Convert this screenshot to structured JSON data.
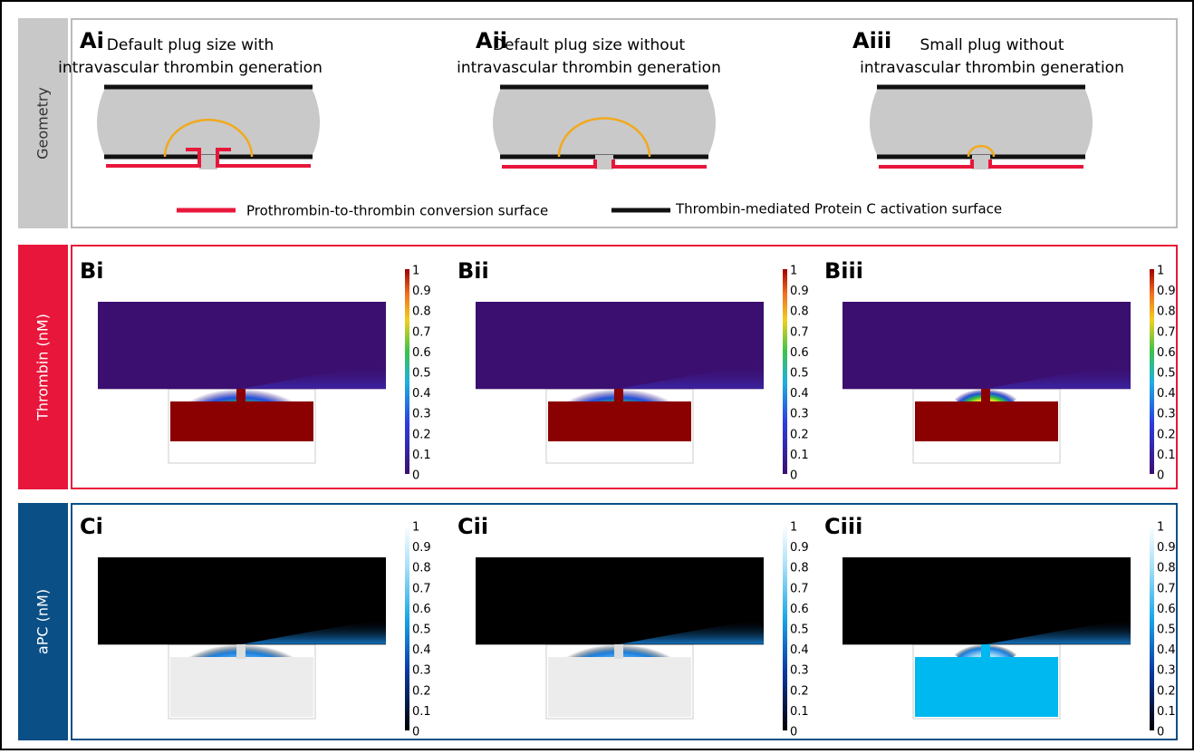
{
  "geometry": {
    "row_label": "Geometry",
    "panels": [
      {
        "id": "Ai",
        "title": [
          "Default plug size with",
          "intravascular thrombin generation"
        ]
      },
      {
        "id": "Aii",
        "title": [
          "Default plug size without",
          "intravascular thrombin generation"
        ]
      },
      {
        "id": "Aiii",
        "title": [
          "Small plug without",
          "intravascular thrombin generation"
        ]
      }
    ],
    "legend": [
      {
        "label": "Prothrombin-to-thrombin conversion surface",
        "color": "#e8163a"
      },
      {
        "label": "Thrombin-mediated Protein C activation surface",
        "color": "#111111"
      }
    ]
  },
  "thrombin": {
    "row_label": "Thrombin (nM)",
    "panels": [
      "Bi",
      "Bii",
      "Biii"
    ],
    "colorbar_ticks": [
      1,
      0.9,
      0.8,
      0.7,
      0.6,
      0.5,
      0.4,
      0.3,
      0.2,
      0.1,
      0
    ]
  },
  "apc": {
    "row_label": "aPC (nM)",
    "panels": [
      "Ci",
      "Cii",
      "Ciii"
    ],
    "colorbar_ticks": [
      1,
      0.9,
      0.8,
      0.7,
      0.6,
      0.5,
      0.4,
      0.3,
      0.2,
      0.1,
      0
    ]
  }
}
